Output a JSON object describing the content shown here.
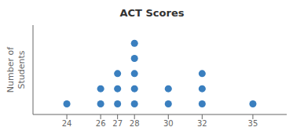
{
  "chart_data": {
    "type": "dot_plot",
    "title": "ACT Scores",
    "ylabel": "Number of\nStudents",
    "x": [
      24,
      26,
      27,
      28,
      30,
      32,
      35
    ],
    "values": [
      1,
      2,
      3,
      5,
      2,
      3,
      1
    ],
    "color": "#3a7fbf",
    "xlim": [
      22.0,
      37.0
    ],
    "ylim": [
      0.3,
      6.2
    ],
    "xticks": [
      24,
      26,
      27,
      28,
      30,
      32,
      35
    ],
    "tick_labels": "x",
    "grid": false
  }
}
